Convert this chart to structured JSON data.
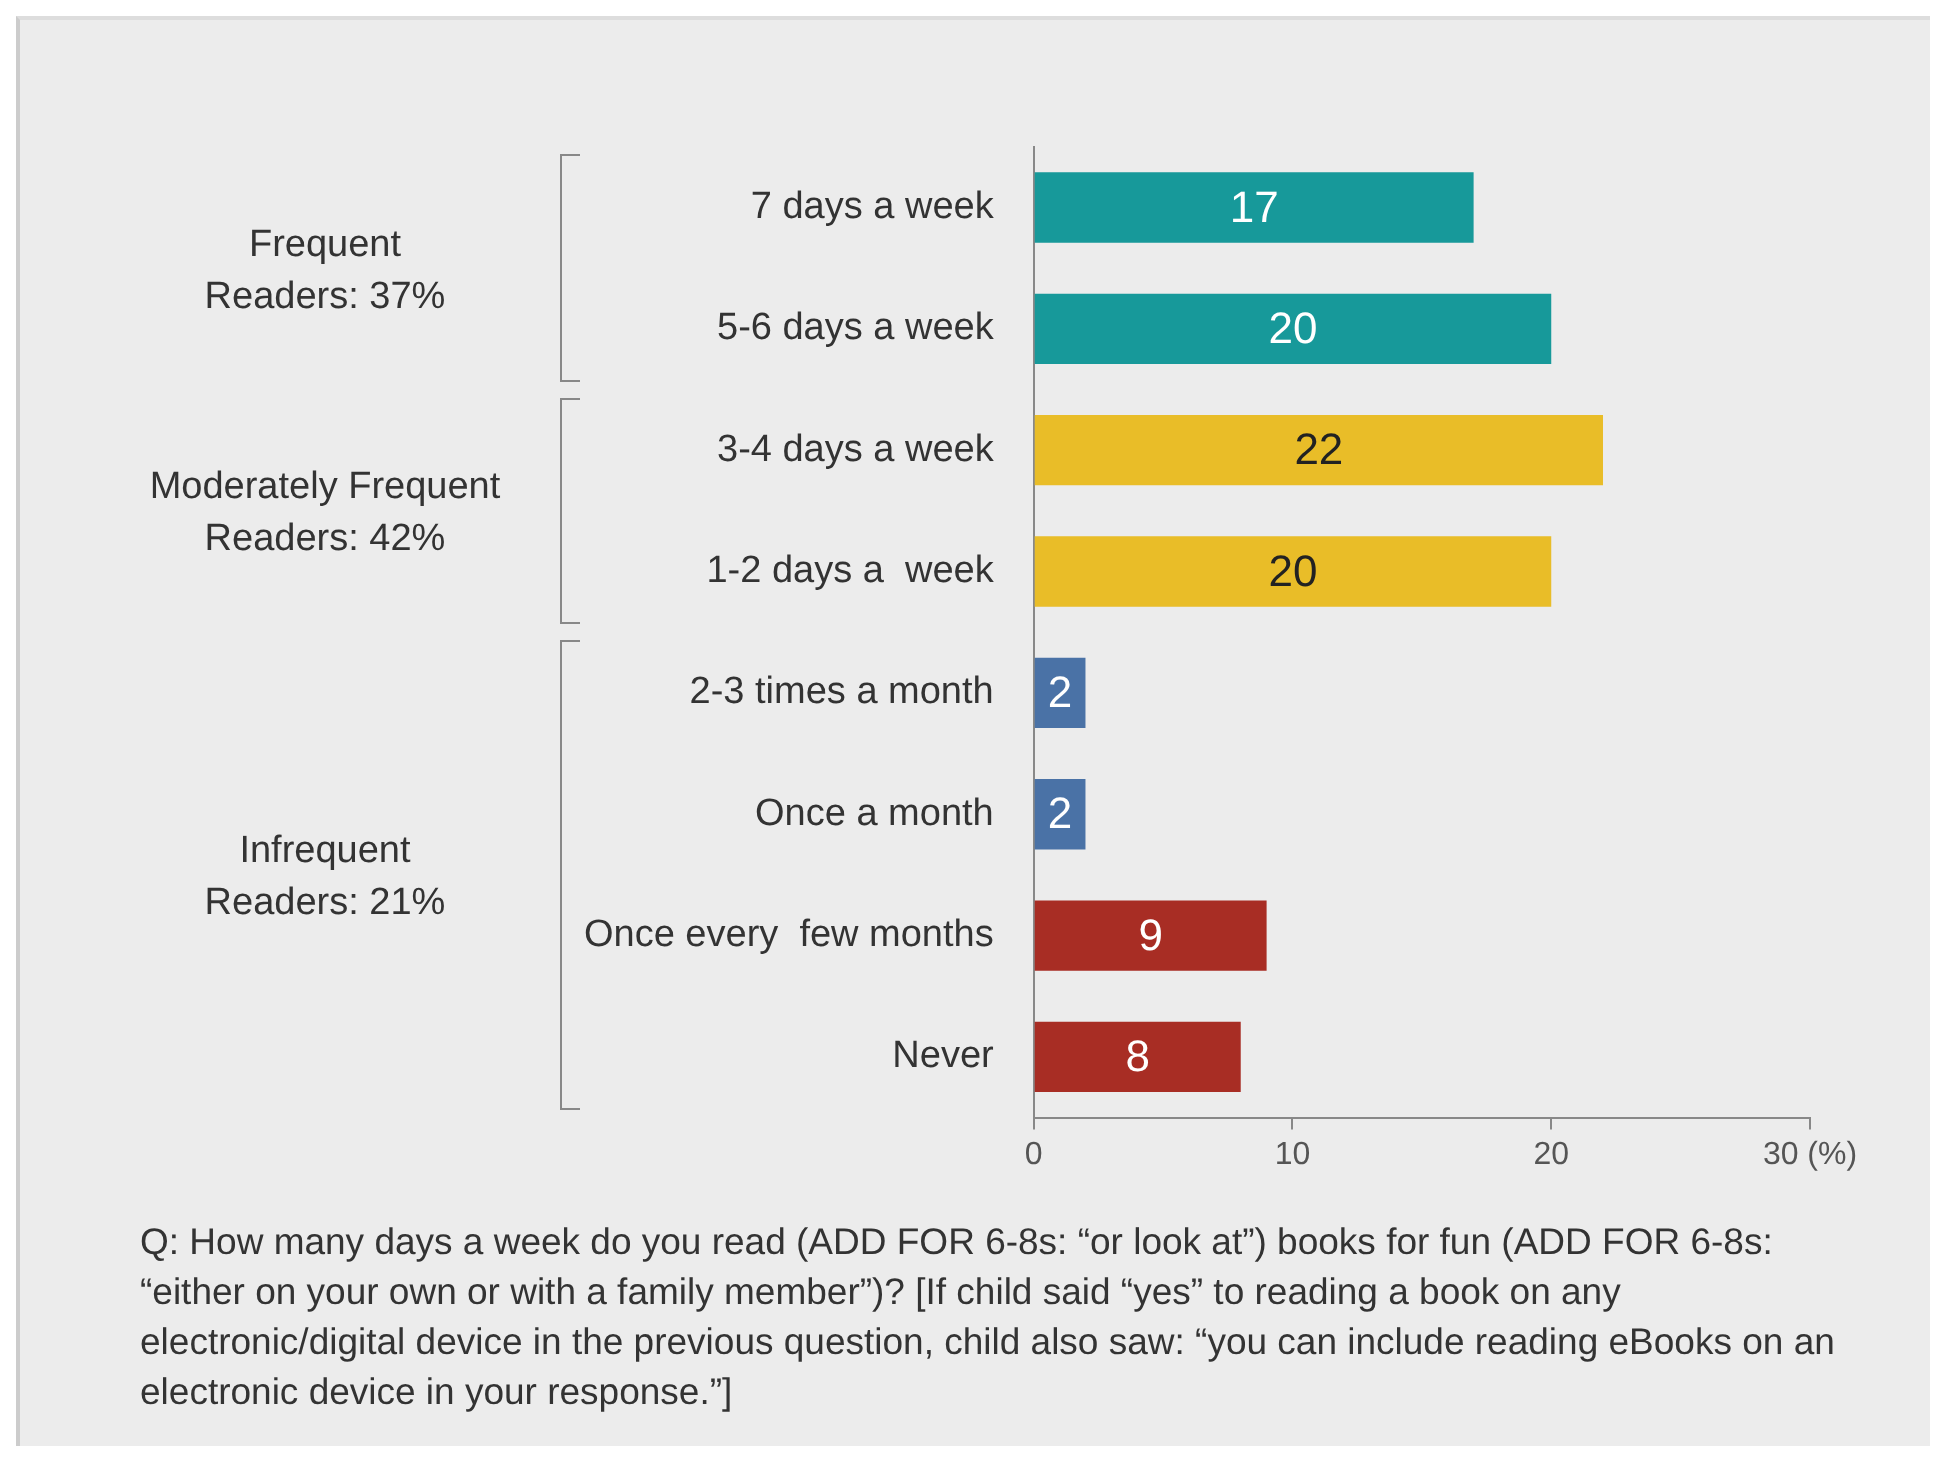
{
  "chart_data": {
    "type": "bar",
    "orientation": "horizontal",
    "categories": [
      "7 days a week",
      "5-6 days a week",
      "3-4 days a week",
      "1-2 days a  week",
      "2-3 times a month",
      "Once a month",
      "Once every  few months",
      "Never"
    ],
    "values": [
      17,
      20,
      22,
      20,
      2,
      2,
      9,
      8
    ],
    "colors": [
      "#17999a",
      "#17999a",
      "#e9bd28",
      "#e9bd28",
      "#4a72a6",
      "#4a72a6",
      "#a82d24",
      "#a82d24"
    ],
    "xlim": [
      0,
      30
    ],
    "xticks": [
      0,
      10,
      20,
      {
        "value": 30,
        "label": "30 (%)"
      }
    ],
    "grid": false,
    "legend": false,
    "data_labels": true,
    "annotations": [
      "Frequent\nReaders: 37%",
      "Moderately Frequent\nReaders: 42%",
      "Infrequent\nReaders: 21%",
      "Q: How many days a week do you read (ADD FOR 6-8s: “or look at”) books for fun (ADD FOR 6-8s: “either on your own or with a family member”)? [If child said “yes” to reading a book on any electronic/digital device in the previous question, child also saw: “you can include reading eBooks on an electronic device in your response.”]"
    ]
  }
}
